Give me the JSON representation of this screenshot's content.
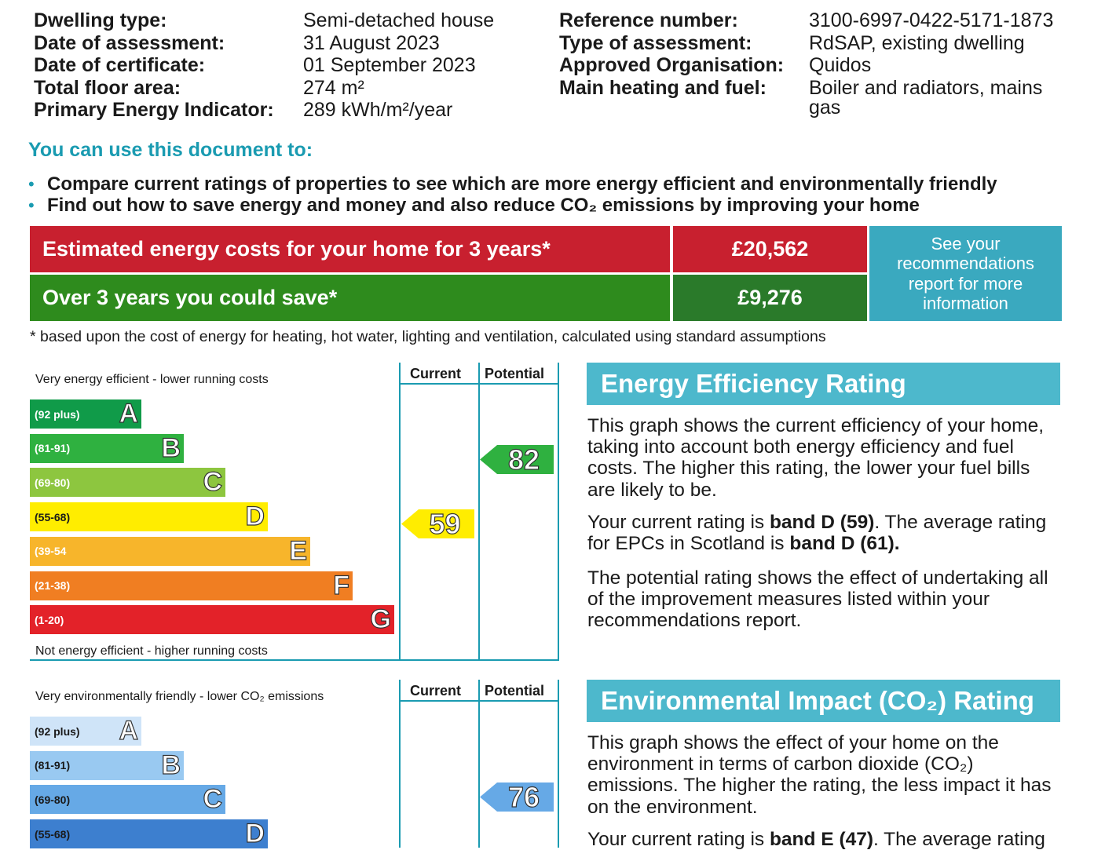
{
  "summary": {
    "left": [
      {
        "label": "Dwelling type:",
        "value": "Semi-detached house"
      },
      {
        "label": "Date of assessment:",
        "value": "31 August 2023"
      },
      {
        "label": "Date of certificate:",
        "value": "01 September 2023"
      },
      {
        "label": "Total floor area:",
        "value": "274 m²"
      },
      {
        "label": "Primary Energy Indicator:",
        "value": "289 kWh/m²/year"
      }
    ],
    "right": [
      {
        "label": "Reference number:",
        "value": "3100-6997-0422-5171-1873"
      },
      {
        "label": "Type of assessment:",
        "value": "RdSAP, existing dwelling"
      },
      {
        "label": "Approved Organisation:",
        "value": "Quidos"
      },
      {
        "label": "Main heating and fuel:",
        "value": "Boiler and radiators, mains"
      },
      {
        "label": "",
        "value": "gas"
      }
    ]
  },
  "use_doc": {
    "heading": "You can use this document to:",
    "bullets": [
      "Compare current ratings of properties to see which are more energy efficient and environmentally friendly",
      "Find out how to save energy and money and also reduce CO₂ emissions by improving your home"
    ]
  },
  "costs": {
    "row1_label": "Estimated energy costs for your home for 3 years*",
    "row1_value": "£20,562",
    "row2_label": "Over 3 years you could save*",
    "row2_value": "£9,276",
    "side_note": "See your recommendations report for more information",
    "footnote": "* based upon the cost of energy for heating, hot water, lighting and ventilation, calculated using standard assumptions",
    "colors": {
      "red": "#c8202f",
      "green": "#2e8b1d",
      "dark_green": "#2a7a2a",
      "teal": "#3aa9bf"
    }
  },
  "energy_chart": {
    "top_note": "Very energy efficient - lower running costs",
    "bottom_note": "Not energy efficient - higher running costs",
    "col_current": "Current",
    "col_potential": "Potential",
    "bands": [
      {
        "range": "(92 plus)",
        "letter": "A",
        "color": "#109b49"
      },
      {
        "range": "(81-91)",
        "letter": "B",
        "color": "#2fb140"
      },
      {
        "range": "(69-80)",
        "letter": "C",
        "color": "#8dc63f"
      },
      {
        "range": "(55-68)",
        "letter": "D",
        "color": "#ffed00"
      },
      {
        "range": "(39-54",
        "letter": "E",
        "color": "#f7b52b"
      },
      {
        "range": "(21-38)",
        "letter": "F",
        "color": "#f07e22"
      },
      {
        "range": "(1-20)",
        "letter": "G",
        "color": "#e32229"
      }
    ],
    "current": {
      "value": "59",
      "band": "D",
      "color": "#ffed00"
    },
    "potential": {
      "value": "82",
      "band": "B",
      "color": "#2fb140"
    }
  },
  "env_chart": {
    "top_note": "Very environmentally friendly - lower CO₂ emissions",
    "col_current": "Current",
    "col_potential": "Potential",
    "bands": [
      {
        "range": "(92 plus)",
        "letter": "A",
        "color": "#cfe4f8"
      },
      {
        "range": "(81-91)",
        "letter": "B",
        "color": "#99c9f1"
      },
      {
        "range": "(69-80)",
        "letter": "C",
        "color": "#66a9e6"
      },
      {
        "range": "(55-68)",
        "letter": "D",
        "color": "#3d7fcf"
      }
    ],
    "potential": {
      "value": "76",
      "band": "C",
      "color": "#66a9e6"
    }
  },
  "eer_panel": {
    "heading": "Energy Efficiency Rating",
    "p1": "This graph shows the current efficiency of your home, taking into account both energy efficiency and fuel costs. The higher this rating, the lower your fuel bills are likely to be.",
    "p2_a": "Your current rating is ",
    "p2_b": "band D (59)",
    "p2_c": ". The average rating for EPCs in Scotland is ",
    "p2_d": "band D (61).",
    "p3": "The potential rating shows the effect of undertaking all of the improvement measures listed within your recommendations report."
  },
  "eir_panel": {
    "heading": "Environmental Impact (CO₂) Rating",
    "p1": "This graph shows the effect of your home on the environment in terms of carbon dioxide (CO₂) emissions. The higher the rating, the less impact it has on the environment.",
    "p2_a": "Your current rating is ",
    "p2_b": "band E (47)",
    "p2_c": ". The average rating"
  }
}
